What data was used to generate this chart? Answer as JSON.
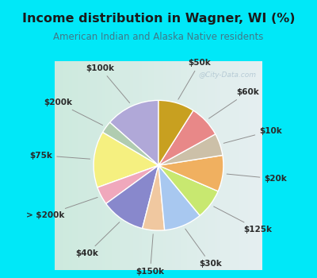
{
  "title": "Income distribution in Wagner, WI (%)",
  "subtitle": "American Indian and Alaska Native residents",
  "labels": [
    "$100k",
    "$200k",
    "$75k",
    "> $200k",
    "$40k",
    "$150k",
    "$30k",
    "$125k",
    "$20k",
    "$10k",
    "$60k",
    "$50k"
  ],
  "values": [
    13.5,
    3.0,
    14.0,
    4.5,
    11.0,
    5.5,
    9.5,
    7.5,
    9.0,
    5.5,
    8.0,
    9.0
  ],
  "colors": [
    "#b0a8d8",
    "#b0ccb0",
    "#f5f080",
    "#f0a8bc",
    "#8888cc",
    "#f0c8a0",
    "#a8c8f0",
    "#c8e870",
    "#f0b060",
    "#ccc0a8",
    "#e88888",
    "#c8a020"
  ],
  "bg_cyan": "#00e8f8",
  "bg_chart_left": "#c8e8d8",
  "bg_chart_right": "#e8eef2",
  "title_color": "#1a1a1a",
  "subtitle_color": "#407888",
  "watermark": "@City-Data.com",
  "label_fontsize": 7.5,
  "label_color": "#2a2a2a"
}
